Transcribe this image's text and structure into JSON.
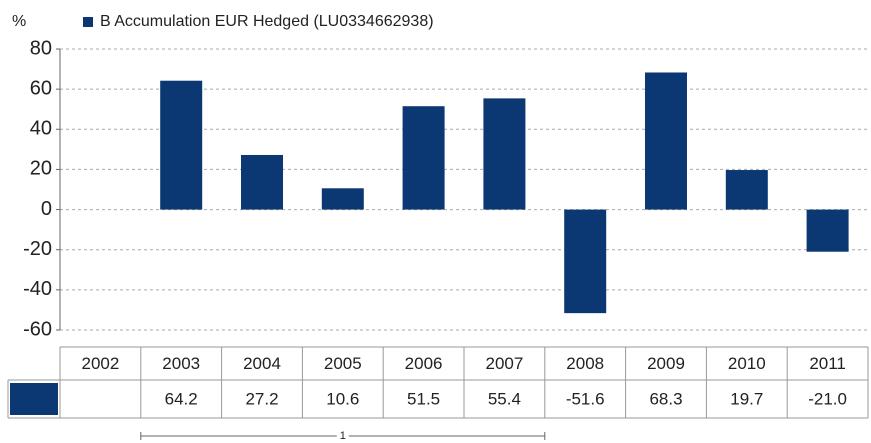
{
  "chart_data": {
    "type": "bar",
    "y_label": "%",
    "categories": [
      "2002",
      "2003",
      "2004",
      "2005",
      "2006",
      "2007",
      "2008",
      "2009",
      "2010",
      "2011"
    ],
    "series": [
      {
        "name": "B Accumulation EUR Hedged (LU0334662938)",
        "color": "#0b3872",
        "values": [
          null,
          64.2,
          27.2,
          10.6,
          51.5,
          55.4,
          -51.6,
          68.3,
          19.7,
          -21.0
        ],
        "value_labels": [
          null,
          "64.2",
          "27.2",
          "10.6",
          "51.5",
          "55.4",
          "-51.6",
          "68.3",
          "19.7",
          "-21.0"
        ]
      }
    ],
    "ylim": [
      -60,
      80
    ],
    "yticks": [
      -60,
      -40,
      -20,
      0,
      20,
      40,
      60,
      80
    ],
    "grid": true,
    "annotation": {
      "label": "1",
      "from": "2003",
      "to": "2007"
    }
  }
}
